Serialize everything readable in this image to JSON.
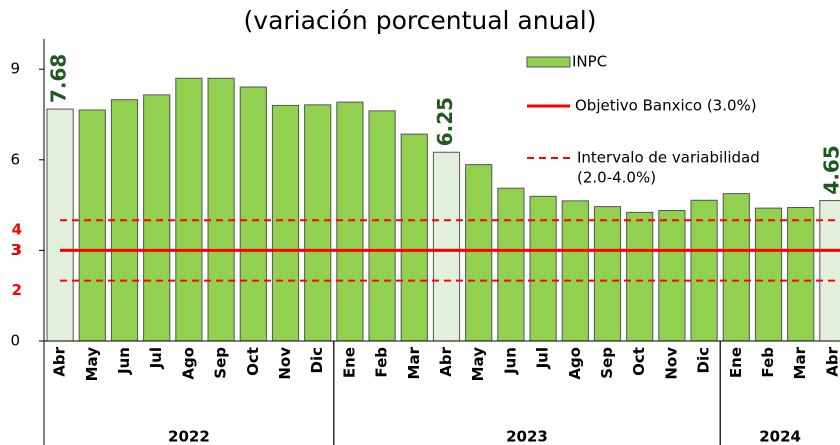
{
  "chart_data": {
    "type": "bar",
    "subtitle": "(variación porcentual anual)",
    "categories": [
      "Abr",
      "May",
      "Jun",
      "Jul",
      "Ago",
      "Sep",
      "Oct",
      "Nov",
      "Dic",
      "Ene",
      "Feb",
      "Mar",
      "Abr",
      "May",
      "Jun",
      "Jul",
      "Ago",
      "Sep",
      "Oct",
      "Nov",
      "Dic",
      "Ene",
      "Feb",
      "Mar",
      "Abr"
    ],
    "groups": [
      {
        "label": "2022",
        "from": 0,
        "to": 8
      },
      {
        "label": "2023",
        "from": 9,
        "to": 20
      },
      {
        "label": "2024",
        "from": 21,
        "to": 24
      }
    ],
    "series": [
      {
        "name": "INPC",
        "color": "#92d050",
        "values": [
          7.68,
          7.65,
          7.99,
          8.15,
          8.7,
          8.7,
          8.41,
          7.8,
          7.82,
          7.91,
          7.62,
          6.85,
          6.25,
          5.84,
          5.06,
          4.79,
          4.64,
          4.45,
          4.26,
          4.32,
          4.66,
          4.88,
          4.4,
          4.42,
          4.65
        ],
        "value_labels": [
          "7.68",
          null,
          null,
          null,
          null,
          null,
          null,
          null,
          null,
          null,
          null,
          null,
          "6.25",
          null,
          null,
          null,
          null,
          null,
          null,
          null,
          null,
          null,
          null,
          null,
          "4.65"
        ],
        "highlight": [
          0,
          12,
          24
        ],
        "highlight_color": "#e2efda"
      }
    ],
    "target": {
      "name": "Objetivo Banxico (3.0%)",
      "value": 3,
      "color": "#ff0000"
    },
    "band": {
      "name": [
        "Intervalo de variabilidad",
        "(2.0-4.0%)"
      ],
      "values": [
        2,
        4
      ],
      "color": "#ff0000"
    },
    "ylim": [
      0,
      10
    ],
    "yticks": [
      0,
      3,
      6,
      9
    ]
  }
}
